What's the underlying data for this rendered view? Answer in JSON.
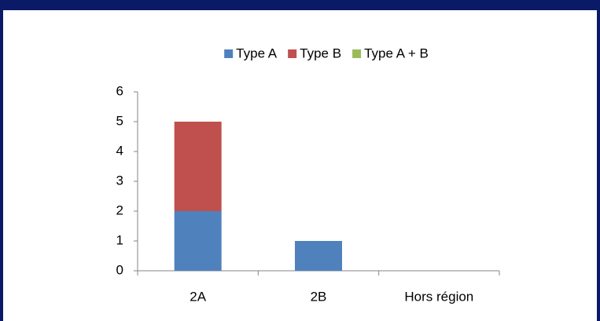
{
  "chart_data": {
    "type": "stacked_bar",
    "categories": [
      "2A",
      "2B",
      "Hors région"
    ],
    "series": [
      {
        "name": "Type A",
        "color": "#4f81bd",
        "values": [
          2,
          1,
          0
        ]
      },
      {
        "name": "Type B",
        "color": "#c0504d",
        "values": [
          3,
          0,
          0
        ]
      },
      {
        "name": "Type A + B",
        "color": "#9bbb59",
        "values": [
          0,
          0,
          0
        ]
      }
    ],
    "ylim": [
      0,
      6
    ],
    "yticks": [
      0,
      1,
      2,
      3,
      4,
      5,
      6
    ],
    "grid": false,
    "legend": "top"
  }
}
